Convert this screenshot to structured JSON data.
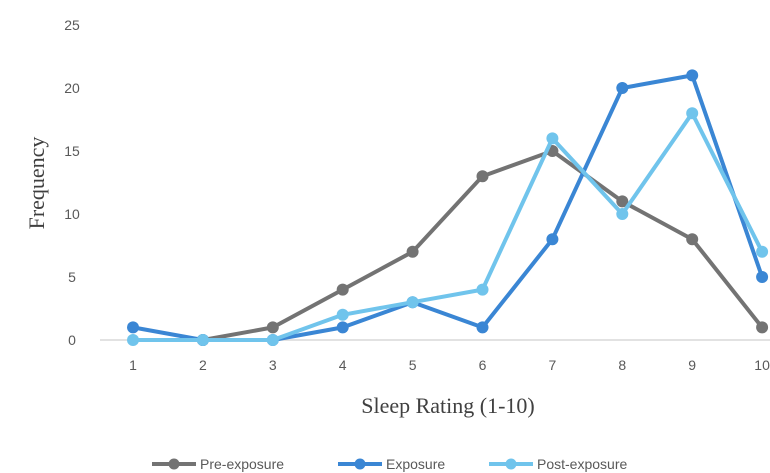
{
  "chart_data": {
    "type": "line",
    "title": "",
    "xlabel": "Sleep Rating (1-10)",
    "ylabel": "Frequency",
    "categories": [
      "1",
      "2",
      "3",
      "4",
      "5",
      "6",
      "7",
      "8",
      "9",
      "10"
    ],
    "ylim": [
      0,
      25
    ],
    "yticks": [
      "0",
      "5",
      "10",
      "15",
      "20",
      "25"
    ],
    "grid": false,
    "legend_position": "bottom",
    "series": [
      {
        "name": "Pre-exposure",
        "color": "#737373",
        "values": [
          null,
          0,
          1,
          4,
          7,
          13,
          15,
          11,
          8,
          1
        ]
      },
      {
        "name": "Exposure",
        "color": "#3a86d4",
        "values": [
          1,
          0,
          0,
          1,
          3,
          1,
          8,
          20,
          21,
          5
        ]
      },
      {
        "name": "Post-exposure",
        "color": "#70c4ec",
        "values": [
          0,
          0,
          0,
          2,
          3,
          4,
          16,
          10,
          18,
          7
        ]
      }
    ]
  }
}
